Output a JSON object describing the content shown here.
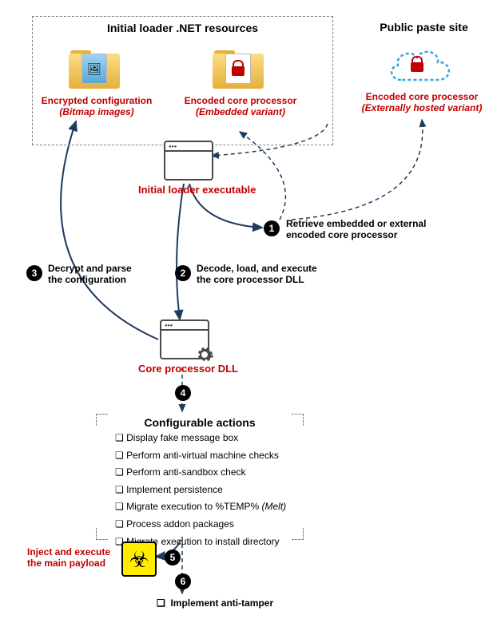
{
  "colors": {
    "red": "#c00000",
    "line": "#1f3b60",
    "dashed_border": "#7f7f7f",
    "folder_light": "#fcdd86",
    "folder_dark": "#e6b03a",
    "step_bg": "#000000",
    "step_fg": "#ffffff",
    "biohazard_bg": "#ffec00",
    "cloud_stroke": "#3aa6dd"
  },
  "header": {
    "resources_title": "Initial loader .NET resources",
    "paste_title": "Public paste site"
  },
  "folders": {
    "config_label1": "Encrypted configuration",
    "config_label2": "(Bitmap images)",
    "embedded_label1": "Encoded core processor",
    "embedded_label2": "(Embedded variant)",
    "external_label1": "Encoded core processor",
    "external_label2": "(Externally hosted variant)"
  },
  "nodes": {
    "initial_loader": "Initial loader executable",
    "core_dll": "Core processor DLL",
    "config_actions_title": "Configurable actions",
    "inject_label1": "Inject and execute",
    "inject_label2": "the main payload",
    "anti_tamper": "Implement anti-tamper"
  },
  "steps": {
    "s1": {
      "num": "1",
      "text1": "Retrieve embedded or external",
      "text2": "encoded core processor"
    },
    "s2": {
      "num": "2",
      "text1": "Decode, load, and execute",
      "text2": "the core processor DLL"
    },
    "s3": {
      "num": "3",
      "text1": "Decrypt and parse",
      "text2": "the configuration"
    },
    "s4": {
      "num": "4"
    },
    "s5": {
      "num": "5"
    },
    "s6": {
      "num": "6"
    }
  },
  "actions": [
    "Display fake message box",
    "Perform anti-virtual machine checks",
    "Perform anti-sandbox check",
    "Implement persistence",
    "Migrate execution to %TEMP% (Melt)",
    "Process addon packages",
    "Migrate execution to install directory"
  ]
}
